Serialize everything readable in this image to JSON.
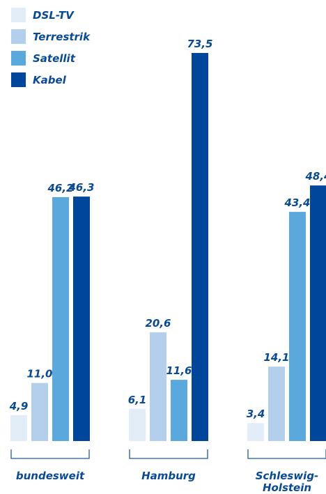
{
  "chart_data": {
    "type": "bar",
    "title": "",
    "xlabel": "",
    "ylabel": "",
    "ylim": [
      0,
      75
    ],
    "legend_position": "top-left",
    "categories": [
      "bundesweit",
      "Hamburg",
      "Schleswig-Holstein"
    ],
    "category_lines": [
      [
        "bundesweit"
      ],
      [
        "Hamburg"
      ],
      [
        "Schleswig-",
        "Holstein"
      ]
    ],
    "series": [
      {
        "name": "DSL-TV",
        "color": "#e3edf8",
        "values": [
          4.9,
          6.1,
          3.4
        ],
        "labels": [
          "4,9",
          "6,1",
          "3,4"
        ]
      },
      {
        "name": "Terrestrik",
        "color": "#b3cfeb",
        "values": [
          11.0,
          20.6,
          14.1
        ],
        "labels": [
          "11,0",
          "20,6",
          "14,1"
        ]
      },
      {
        "name": "Satellit",
        "color": "#5aa8dc",
        "values": [
          46.2,
          11.6,
          43.4
        ],
        "labels": [
          "46,2",
          "11,6",
          "43,4"
        ]
      },
      {
        "name": "Kabel",
        "color": "#00469b",
        "values": [
          46.3,
          73.5,
          48.4
        ],
        "labels": [
          "46,3",
          "73,5",
          "48,4"
        ]
      }
    ],
    "label_color": "#0a4a93",
    "bracket_color": "#1a5a9e"
  }
}
